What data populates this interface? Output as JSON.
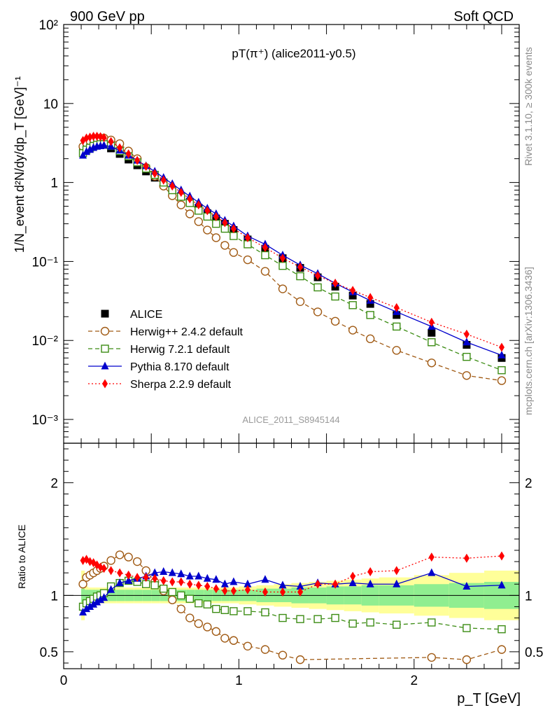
{
  "header": {
    "left": "900 GeV pp",
    "right": "Soft QCD"
  },
  "side_labels": {
    "rivet": "Rivet 3.1.10, ≥ 300k events",
    "mcplots": "mcplots.cern.ch [arXiv:1306.3436]"
  },
  "watermark": "ALICE_2011_S8945144",
  "chart_data": [
    {
      "type": "scatter",
      "panel": "main",
      "title": "pT(π⁺) (alice2011-y0.5)",
      "ylabel": "1/N_event d²N/dy/dp_T [GeV]⁻¹",
      "yscale": "log",
      "ylim": [
        0.0005,
        100
      ],
      "xlim": [
        0,
        2.6
      ],
      "yticks": [
        "10⁻³",
        "10⁻²",
        "10⁻¹",
        "1",
        "10",
        "10²"
      ],
      "series": [
        {
          "name": "ALICE",
          "color": "#000000",
          "marker": "square-filled",
          "line": "none",
          "x": [
            0.11,
            0.13,
            0.15,
            0.17,
            0.19,
            0.21,
            0.23,
            0.27,
            0.32,
            0.37,
            0.42,
            0.47,
            0.52,
            0.57,
            0.62,
            0.67,
            0.72,
            0.77,
            0.82,
            0.87,
            0.92,
            0.97,
            1.05,
            1.15,
            1.25,
            1.35,
            1.45,
            1.55,
            1.65,
            1.75,
            1.9,
            2.1,
            2.3,
            2.5
          ],
          "y": [
            2.6,
            2.78,
            2.9,
            3.0,
            3.05,
            3.05,
            3.0,
            2.7,
            2.3,
            1.95,
            1.65,
            1.38,
            1.15,
            0.95,
            0.8,
            0.67,
            0.57,
            0.48,
            0.41,
            0.35,
            0.3,
            0.25,
            0.19,
            0.145,
            0.11,
            0.083,
            0.063,
            0.048,
            0.037,
            0.029,
            0.021,
            0.0125,
            0.0088,
            0.006
          ]
        },
        {
          "name": "Herwig++ 2.4.2 default",
          "color": "#a05a14",
          "marker": "circle-open",
          "line": "dashed",
          "x": [
            0.11,
            0.13,
            0.15,
            0.17,
            0.19,
            0.21,
            0.23,
            0.27,
            0.32,
            0.37,
            0.42,
            0.47,
            0.52,
            0.57,
            0.62,
            0.67,
            0.72,
            0.77,
            0.82,
            0.87,
            0.92,
            0.97,
            1.05,
            1.15,
            1.25,
            1.35,
            1.45,
            1.55,
            1.65,
            1.75,
            1.9,
            2.1,
            2.3,
            2.5
          ],
          "y": [
            2.85,
            3.15,
            3.35,
            3.5,
            3.6,
            3.65,
            3.65,
            3.45,
            3.1,
            2.5,
            2.0,
            1.55,
            1.2,
            0.9,
            0.68,
            0.52,
            0.4,
            0.32,
            0.25,
            0.2,
            0.16,
            0.13,
            0.105,
            0.075,
            0.045,
            0.031,
            0.023,
            0.0175,
            0.0135,
            0.0105,
            0.0075,
            0.0052,
            0.0036,
            0.0031
          ]
        },
        {
          "name": "Herwig 7.2.1 default",
          "color": "#3c8c14",
          "marker": "square-open",
          "line": "dashed",
          "x": [
            0.11,
            0.13,
            0.15,
            0.17,
            0.19,
            0.21,
            0.23,
            0.27,
            0.32,
            0.37,
            0.42,
            0.47,
            0.52,
            0.57,
            0.62,
            0.67,
            0.72,
            0.77,
            0.82,
            0.87,
            0.92,
            0.97,
            1.05,
            1.15,
            1.25,
            1.35,
            1.45,
            1.55,
            1.65,
            1.75,
            1.9,
            2.1,
            2.3,
            2.5
          ],
          "y": [
            2.35,
            2.6,
            2.75,
            2.9,
            3.0,
            3.05,
            3.05,
            2.9,
            2.5,
            2.15,
            1.8,
            1.5,
            1.25,
            1.0,
            0.8,
            0.66,
            0.55,
            0.44,
            0.37,
            0.3,
            0.26,
            0.21,
            0.165,
            0.12,
            0.088,
            0.065,
            0.047,
            0.036,
            0.028,
            0.021,
            0.015,
            0.0095,
            0.0062,
            0.0042
          ]
        },
        {
          "name": "Pythia 8.170 default",
          "color": "#0000cc",
          "marker": "triangle-filled",
          "line": "solid",
          "x": [
            0.11,
            0.13,
            0.15,
            0.17,
            0.19,
            0.21,
            0.23,
            0.27,
            0.32,
            0.37,
            0.42,
            0.47,
            0.52,
            0.57,
            0.62,
            0.67,
            0.72,
            0.77,
            0.82,
            0.87,
            0.92,
            0.97,
            1.05,
            1.15,
            1.25,
            1.35,
            1.45,
            1.55,
            1.65,
            1.75,
            1.9,
            2.1,
            2.3,
            2.5
          ],
          "y": [
            2.2,
            2.45,
            2.6,
            2.75,
            2.85,
            2.9,
            2.95,
            2.85,
            2.55,
            2.2,
            1.9,
            1.62,
            1.38,
            1.15,
            0.96,
            0.8,
            0.67,
            0.56,
            0.47,
            0.4,
            0.33,
            0.28,
            0.21,
            0.165,
            0.12,
            0.09,
            0.07,
            0.053,
            0.041,
            0.032,
            0.023,
            0.015,
            0.0095,
            0.0065
          ]
        },
        {
          "name": "Sherpa 2.2.9 default",
          "color": "#ff0000",
          "marker": "diamond-filled",
          "line": "dotted",
          "x": [
            0.11,
            0.13,
            0.15,
            0.17,
            0.19,
            0.21,
            0.23,
            0.27,
            0.32,
            0.37,
            0.42,
            0.47,
            0.52,
            0.57,
            0.62,
            0.67,
            0.72,
            0.77,
            0.82,
            0.87,
            0.92,
            0.97,
            1.05,
            1.15,
            1.25,
            1.35,
            1.45,
            1.55,
            1.65,
            1.75,
            1.9,
            2.1,
            2.3,
            2.5
          ],
          "y": [
            3.4,
            3.65,
            3.75,
            3.85,
            3.85,
            3.8,
            3.7,
            3.3,
            2.75,
            2.3,
            1.9,
            1.6,
            1.3,
            1.07,
            0.9,
            0.75,
            0.62,
            0.52,
            0.44,
            0.37,
            0.31,
            0.26,
            0.2,
            0.15,
            0.11,
            0.085,
            0.066,
            0.053,
            0.043,
            0.035,
            0.026,
            0.017,
            0.012,
            0.0082
          ]
        }
      ],
      "legend_position": "left-middle"
    },
    {
      "type": "scatter",
      "panel": "ratio",
      "ylabel": "Ratio to ALICE",
      "xlabel": "p_T [GeV]",
      "ylim": [
        0.35,
        2.35
      ],
      "xlim": [
        0,
        2.6
      ],
      "yticks": [
        "0.5",
        "1",
        "2"
      ],
      "xticks": [
        "0",
        "1",
        "2"
      ],
      "reference_line": 1,
      "bands": {
        "x_edges": [
          0.1,
          0.12,
          0.14,
          0.16,
          0.18,
          0.2,
          0.22,
          0.25,
          0.3,
          0.35,
          0.4,
          0.45,
          0.5,
          0.55,
          0.6,
          0.65,
          0.7,
          0.75,
          0.8,
          0.85,
          0.9,
          0.95,
          1.0,
          1.1,
          1.2,
          1.3,
          1.4,
          1.5,
          1.6,
          1.7,
          1.8,
          2.0,
          2.2,
          2.4,
          2.6
        ],
        "green_halfwidth": [
          0.06,
          0.05,
          0.05,
          0.05,
          0.05,
          0.05,
          0.05,
          0.05,
          0.05,
          0.05,
          0.05,
          0.05,
          0.05,
          0.05,
          0.05,
          0.05,
          0.05,
          0.05,
          0.05,
          0.05,
          0.05,
          0.05,
          0.05,
          0.06,
          0.06,
          0.07,
          0.07,
          0.08,
          0.08,
          0.09,
          0.09,
          0.1,
          0.11,
          0.12
        ],
        "yellow_halfwidth": [
          0.22,
          0.08,
          0.07,
          0.07,
          0.07,
          0.07,
          0.07,
          0.07,
          0.07,
          0.07,
          0.07,
          0.07,
          0.07,
          0.07,
          0.07,
          0.07,
          0.07,
          0.07,
          0.07,
          0.07,
          0.07,
          0.07,
          0.08,
          0.09,
          0.1,
          0.11,
          0.12,
          0.13,
          0.14,
          0.15,
          0.16,
          0.18,
          0.2,
          0.22
        ],
        "green_color": "#90ee90",
        "yellow_color": "#ffff99"
      },
      "series": [
        {
          "name": "Herwig++ 2.4.2 default",
          "color": "#a05a14",
          "marker": "circle-open",
          "line": "dashed",
          "x": [
            0.11,
            0.13,
            0.15,
            0.17,
            0.19,
            0.21,
            0.23,
            0.27,
            0.32,
            0.37,
            0.42,
            0.47,
            0.52,
            0.57,
            0.62,
            0.67,
            0.72,
            0.77,
            0.82,
            0.87,
            0.92,
            0.97,
            1.05,
            1.15,
            1.25,
            1.35,
            2.1,
            2.3,
            2.5
          ],
          "y": [
            1.1,
            1.16,
            1.18,
            1.2,
            1.22,
            1.24,
            1.26,
            1.31,
            1.36,
            1.34,
            1.3,
            1.22,
            1.12,
            1.04,
            0.96,
            0.88,
            0.8,
            0.75,
            0.72,
            0.68,
            0.62,
            0.6,
            0.55,
            0.52,
            0.47,
            0.43,
            0.45,
            0.43,
            0.52
          ]
        },
        {
          "name": "Herwig 7.2.1 default",
          "color": "#3c8c14",
          "marker": "square-open",
          "line": "dashed",
          "x": [
            0.11,
            0.13,
            0.15,
            0.17,
            0.19,
            0.21,
            0.23,
            0.27,
            0.32,
            0.37,
            0.42,
            0.47,
            0.52,
            0.57,
            0.62,
            0.67,
            0.72,
            0.77,
            0.82,
            0.87,
            0.92,
            0.97,
            1.05,
            1.15,
            1.25,
            1.35,
            1.45,
            1.55,
            1.65,
            1.75,
            1.9,
            2.1,
            2.3,
            2.5
          ],
          "y": [
            0.9,
            0.93,
            0.95,
            0.97,
            0.99,
            1.0,
            1.02,
            1.08,
            1.11,
            1.13,
            1.12,
            1.1,
            1.09,
            1.06,
            1.03,
            1.0,
            0.97,
            0.93,
            0.92,
            0.88,
            0.87,
            0.86,
            0.86,
            0.85,
            0.8,
            0.79,
            0.79,
            0.8,
            0.75,
            0.76,
            0.74,
            0.76,
            0.71,
            0.7
          ]
        },
        {
          "name": "Pythia 8.170 default",
          "color": "#0000cc",
          "marker": "triangle-filled",
          "line": "solid",
          "x": [
            0.11,
            0.13,
            0.15,
            0.17,
            0.19,
            0.21,
            0.23,
            0.27,
            0.32,
            0.37,
            0.42,
            0.47,
            0.52,
            0.57,
            0.62,
            0.67,
            0.72,
            0.77,
            0.82,
            0.87,
            0.92,
            0.97,
            1.05,
            1.15,
            1.25,
            1.35,
            1.45,
            1.55,
            1.65,
            1.75,
            1.9,
            2.1,
            2.3,
            2.5
          ],
          "y": [
            0.85,
            0.88,
            0.9,
            0.92,
            0.94,
            0.96,
            0.98,
            1.05,
            1.11,
            1.13,
            1.15,
            1.17,
            1.2,
            1.21,
            1.2,
            1.19,
            1.17,
            1.17,
            1.15,
            1.14,
            1.1,
            1.12,
            1.1,
            1.14,
            1.09,
            1.08,
            1.11,
            1.1,
            1.11,
            1.1,
            1.1,
            1.2,
            1.08,
            1.09
          ]
        },
        {
          "name": "Sherpa 2.2.9 default",
          "color": "#ff0000",
          "marker": "diamond-filled",
          "line": "dotted",
          "x": [
            0.11,
            0.13,
            0.15,
            0.17,
            0.19,
            0.21,
            0.23,
            0.27,
            0.32,
            0.37,
            0.42,
            0.47,
            0.52,
            0.57,
            0.62,
            0.67,
            0.72,
            0.77,
            0.82,
            0.87,
            0.92,
            0.97,
            1.05,
            1.15,
            1.25,
            1.35,
            1.45,
            1.55,
            1.65,
            1.75,
            1.9,
            2.1,
            2.3,
            2.5
          ],
          "y": [
            1.31,
            1.32,
            1.3,
            1.29,
            1.27,
            1.25,
            1.24,
            1.22,
            1.2,
            1.18,
            1.16,
            1.16,
            1.15,
            1.13,
            1.12,
            1.12,
            1.1,
            1.09,
            1.08,
            1.06,
            1.04,
            1.04,
            1.05,
            1.03,
            1.03,
            1.03,
            1.1,
            1.1,
            1.17,
            1.21,
            1.22,
            1.34,
            1.33,
            1.35
          ]
        }
      ]
    }
  ]
}
